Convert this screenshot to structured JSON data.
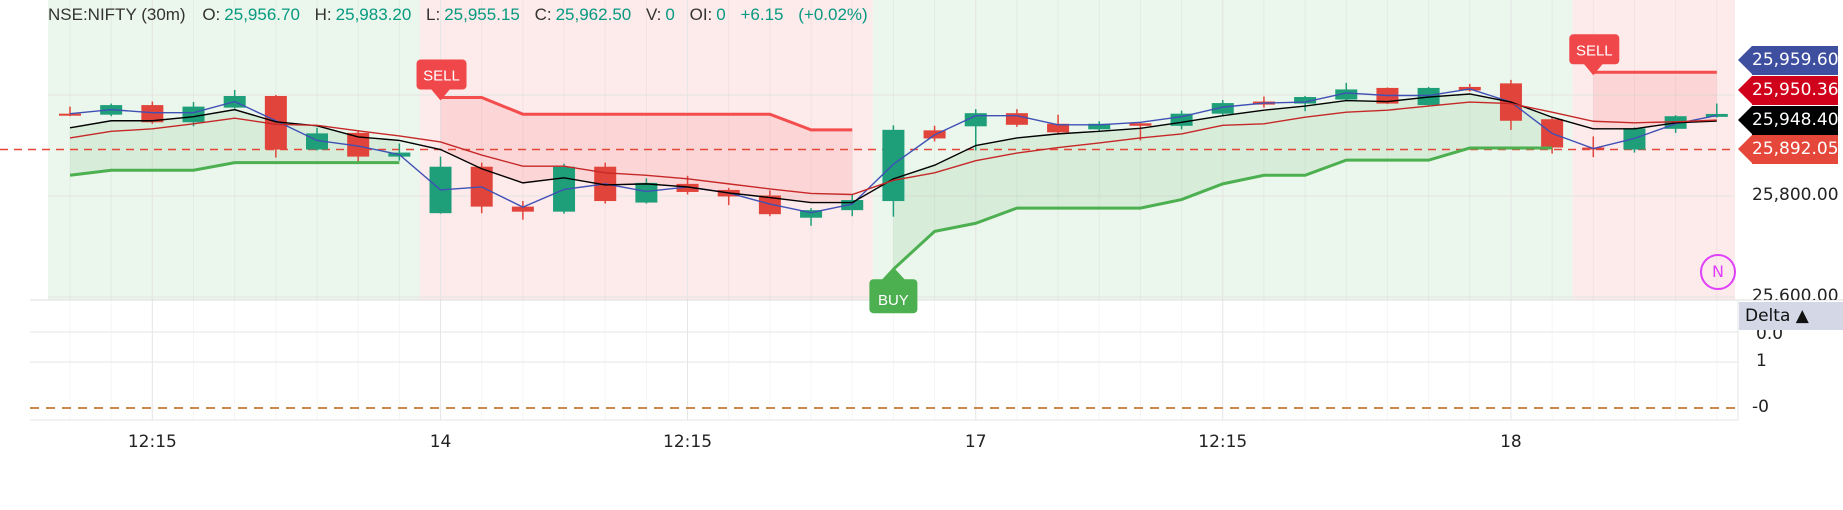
{
  "header": {
    "symbol": "NSE:NIFTY (30m)",
    "o_label": "O:",
    "o": "25,956.70",
    "h_label": "H:",
    "h": "25,983.20",
    "l_label": "L:",
    "l": "25,955.15",
    "c_label": "C:",
    "c": "25,962.50",
    "v_label": "V:",
    "v": "0",
    "oi_label": "OI:",
    "oi": "0",
    "change": "+6.15",
    "change_pct": "(+0.02%)"
  },
  "price_labels": [
    {
      "text": "25,959.60",
      "value": 25959.6,
      "color": "#3f4fa0"
    },
    {
      "text": "25,950.36",
      "value": 25950.36,
      "color": "#d0021b"
    },
    {
      "text": "25,948.40",
      "value": 25948.4,
      "color": "#000000"
    },
    {
      "text": "25,892.05",
      "value": 25892.05,
      "color": "#e5483a"
    }
  ],
  "price_axis": [
    "25,800.00",
    "25,600.00"
  ],
  "lower_pane": {
    "title": "Delta ▲",
    "ticks": [
      "0.0",
      "1",
      "-0"
    ]
  },
  "indicator_badge": "N",
  "chart_data": {
    "type": "candlestick",
    "ylim": [
      25600,
      26188
    ],
    "grid": true,
    "price_ticks": [
      25600,
      25800,
      26000
    ],
    "x_ticks": [
      {
        "label": "12:15",
        "candle": 2
      },
      {
        "label": "14",
        "candle": 9
      },
      {
        "label": "12:15",
        "candle": 15
      },
      {
        "label": "17",
        "candle": 22
      },
      {
        "label": "12:15",
        "candle": 28
      },
      {
        "label": "18",
        "candle": 35
      }
    ],
    "candles": [
      [
        25963,
        25977,
        25958,
        25960
      ],
      [
        25961,
        25983,
        25958,
        25980
      ],
      [
        25980,
        25987,
        25943,
        25946
      ],
      [
        25946,
        25986,
        25938,
        25977
      ],
      [
        25975,
        26010,
        25973,
        25998
      ],
      [
        25998,
        26000,
        25876,
        25892
      ],
      [
        25892,
        25935,
        25890,
        25924
      ],
      [
        25925,
        25928,
        25866,
        25878
      ],
      [
        25878,
        25904,
        25870,
        25886
      ],
      [
        25766,
        25878,
        25765,
        25858
      ],
      [
        25858,
        25866,
        25766,
        25779
      ],
      [
        25779,
        25790,
        25753,
        25769
      ],
      [
        25769,
        25864,
        25765,
        25858
      ],
      [
        25858,
        25866,
        25785,
        25790
      ],
      [
        25787,
        25835,
        25785,
        25826
      ],
      [
        25824,
        25840,
        25803,
        25808
      ],
      [
        25812,
        25816,
        25782,
        25799
      ],
      [
        25801,
        25811,
        25760,
        25764
      ],
      [
        25757,
        25776,
        25741,
        25772
      ],
      [
        25772,
        25802,
        25760,
        25792
      ],
      [
        25790,
        25940,
        25759,
        25931
      ],
      [
        25930,
        25939,
        25908,
        25914
      ],
      [
        25938,
        25972,
        25890,
        25964
      ],
      [
        25964,
        25972,
        25937,
        25941
      ],
      [
        25943,
        25961,
        25922,
        25926
      ],
      [
        25932,
        25948,
        25928,
        25943
      ],
      [
        25944,
        25946,
        25910,
        25939
      ],
      [
        25939,
        25969,
        25932,
        25963
      ],
      [
        25963,
        25990,
        25958,
        25984
      ],
      [
        25987,
        25997,
        25975,
        25981
      ],
      [
        25983,
        25998,
        25968,
        25996
      ],
      [
        25991,
        26024,
        25990,
        26011
      ],
      [
        26014,
        26015,
        25982,
        25983
      ],
      [
        25980,
        26016,
        25979,
        26014
      ],
      [
        26016,
        26022,
        26007,
        26009
      ],
      [
        26023,
        26030,
        25931,
        25949
      ],
      [
        25952,
        25955,
        25884,
        25896
      ],
      [
        25896,
        25918,
        25877,
        25893
      ],
      [
        25892,
        25936,
        25886,
        25934
      ],
      [
        25933,
        25960,
        25925,
        25958
      ],
      [
        25956.7,
        25983.2,
        25955.15,
        25962.5
      ]
    ],
    "series": [
      {
        "color": "#3f51b5",
        "values": [
          25963,
          25971,
          25965,
          25965,
          25987,
          25949,
          25910,
          25899,
          25882,
          25812,
          25818,
          25778,
          25813,
          25824,
          25809,
          25818,
          25806,
          25784,
          25767,
          25784,
          25863,
          25921,
          25959,
          25959,
          25941,
          25941,
          25946,
          25957,
          25976,
          25984,
          25986,
          26004,
          25999,
          25999,
          26012,
          25986,
          25924,
          25894,
          25914,
          25943,
          25959.6
        ]
      },
      {
        "color": "#000000",
        "values": [
          25935,
          25949,
          25949,
          25957,
          25971,
          25947,
          25939,
          25917,
          25910,
          25892,
          25854,
          25826,
          25836,
          25822,
          25824,
          25818,
          25806,
          25797,
          25787,
          25787,
          25834,
          25861,
          25900,
          25915,
          25923,
          25928,
          25934,
          25946,
          25959,
          25970,
          25978,
          25989,
          25987,
          25996,
          26002,
          25986,
          25956,
          25933,
          25933,
          25945,
          25948.4
        ]
      },
      {
        "color": "#c62828",
        "values": [
          25915,
          25928,
          25933,
          25943,
          25954,
          25942,
          25940,
          25929,
          25919,
          25907,
          25881,
          25859,
          25859,
          25846,
          25841,
          25834,
          25824,
          25814,
          25805,
          25803,
          25831,
          25846,
          25870,
          25885,
          25896,
          25905,
          25915,
          25923,
          25940,
          25943,
          25956,
          25966,
          25970,
          25978,
          25986,
          25983,
          25966,
          25948,
          25945,
          25947,
          25950.36
        ]
      }
    ],
    "supertrend_up": {
      "color": "#4caf50",
      "values": [
        25841,
        25851,
        25851,
        25851,
        25866,
        25866,
        25866,
        25866,
        25866,
        null,
        null,
        null,
        null,
        null,
        null,
        null,
        null,
        null,
        null,
        null,
        25655,
        25730,
        25746,
        25776,
        25776,
        25776,
        25776,
        25793,
        25824,
        25841,
        25841,
        25871,
        25871,
        25871,
        25895,
        25895,
        25895,
        null,
        null,
        null,
        null
      ]
    },
    "supertrend_down": {
      "color": "#f44d4d",
      "values": [
        null,
        null,
        null,
        null,
        null,
        null,
        null,
        null,
        null,
        25995,
        25995,
        25962,
        25962,
        25962,
        25962,
        25962,
        25962,
        25962,
        25931,
        25931,
        null,
        null,
        null,
        null,
        null,
        null,
        null,
        null,
        null,
        null,
        null,
        null,
        null,
        null,
        null,
        null,
        null,
        26045,
        26045,
        26045,
        26045
      ]
    },
    "trend_regions": [
      {
        "trend": "up",
        "from": 0,
        "to": 8
      },
      {
        "trend": "down",
        "from": 9,
        "to": 19
      },
      {
        "trend": "up",
        "from": 20,
        "to": 36
      },
      {
        "trend": "down",
        "from": 37,
        "to": 40
      }
    ],
    "signals": [
      {
        "label": "SELL",
        "candle": 9,
        "price": 25995
      },
      {
        "label": "BUY",
        "candle": 20,
        "price": 25655
      },
      {
        "label": "SELL",
        "candle": 37,
        "price": 26045
      }
    ],
    "reference_line": {
      "value": 25892.05,
      "color": "#e5483a",
      "style": "dashed"
    },
    "colors": {
      "up": "#1f9e7a",
      "down": "#e0443a",
      "up_bg": "#ebf6ec",
      "down_bg": "#fdeaea"
    }
  }
}
